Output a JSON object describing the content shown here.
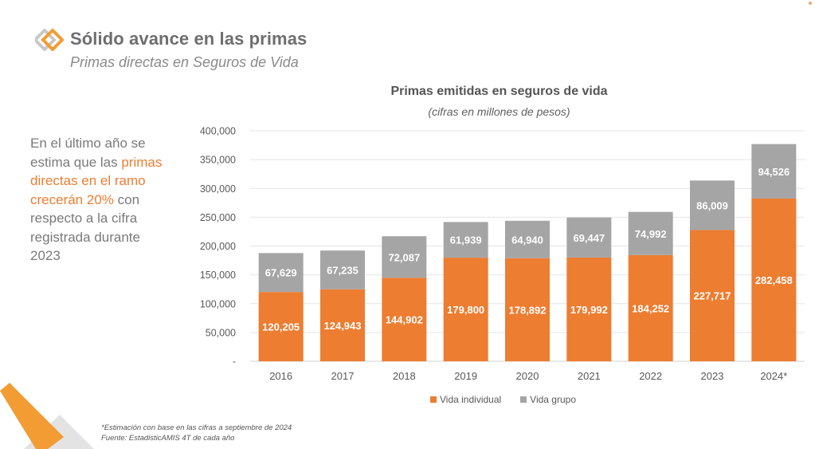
{
  "header": {
    "title": "Sólido avance en las primas",
    "subtitle": "Primas directas en Seguros de Vida"
  },
  "side_text": {
    "part1": "En el último año se estima que las ",
    "highlight": "primas directas en el ramo crecerán 20%",
    "part2": " con respecto a la cifra registrada durante 2023"
  },
  "colors": {
    "accent": "#ed7d31",
    "secondary": "#a5a5a5",
    "text": "#7a7a7a"
  },
  "chart_data": {
    "type": "bar",
    "stacked": true,
    "title": "Primas emitidas en seguros de vida",
    "subtitle": "(cifras en millones de pesos)",
    "xlabel": "",
    "ylabel": "",
    "categories": [
      "2016",
      "2017",
      "2018",
      "2019",
      "2020",
      "2021",
      "2022",
      "2023",
      "2024*"
    ],
    "series": [
      {
        "name": "Vida individual",
        "color": "#ed7d31",
        "values": [
          120205,
          124943,
          144902,
          179800,
          178892,
          179992,
          184252,
          227717,
          282458
        ],
        "labels": [
          "120,205",
          "124,943",
          "144,902",
          "179,800",
          "178,892",
          "179,992",
          "184,252",
          "227,717",
          "282,458"
        ]
      },
      {
        "name": "Vida grupo",
        "color": "#a5a5a5",
        "values": [
          67629,
          67235,
          72087,
          61939,
          64940,
          69447,
          74992,
          86009,
          94526
        ],
        "labels": [
          "67,629",
          "67,235",
          "72,087",
          "61,939",
          "64,940",
          "69,447",
          "74,992",
          "86,009",
          "94,526"
        ]
      }
    ],
    "ylim": [
      0,
      400000
    ],
    "yticks": [
      0,
      50000,
      100000,
      150000,
      200000,
      250000,
      300000,
      350000,
      400000
    ],
    "ytick_labels": [
      "-",
      "50,000",
      "100,000",
      "150,000",
      "200,000",
      "250,000",
      "300,000",
      "350,000",
      "400,000"
    ],
    "grid": true,
    "legend_position": "bottom"
  },
  "footnotes": {
    "note1": "*Estimación con base en las cifras a septiembre de 2024",
    "note2": "Fuente: EstadisticAMIS 4T de cada año"
  }
}
